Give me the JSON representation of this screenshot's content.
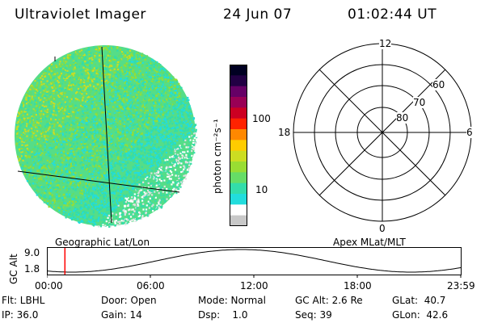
{
  "header": {
    "instrument": "Ultraviolet Imager",
    "date": "24 Jun 07",
    "time": "01:02:44 UT"
  },
  "image_panel": {
    "caption": "Geographic Lat/Lon",
    "palette": [
      "#c8c8c8",
      "#ffffff",
      "#22dddd",
      "#33ddaa",
      "#66dd66",
      "#99dd33",
      "#ccdd22",
      "#ffcc00",
      "#ff8800",
      "#ff2200",
      "#cc0022",
      "#990055",
      "#660066",
      "#220044",
      "#000022"
    ]
  },
  "colorbar": {
    "label": "photon cm⁻²s⁻¹",
    "tick_high": "100",
    "tick_low": "10"
  },
  "polar_panel": {
    "caption": "Apex MLat/MLT",
    "mlt_top": "12",
    "mlt_left": "18",
    "mlt_right": "6",
    "mlt_bottom": "0",
    "lat_60": "60",
    "lat_70": "70",
    "lat_80": "80"
  },
  "orbit_plot": {
    "ylabel": "GC Alt",
    "ytick_high": "9.0",
    "ytick_low": "1.8",
    "xticks": [
      "00:00",
      "06:00",
      "12:00",
      "18:00",
      "23:59"
    ],
    "marker_color": "#ff0000"
  },
  "status": {
    "flt": "Flt: LBHL",
    "ip": "IP: 36.0",
    "door": "Door: Open",
    "gain": "Gain: 14",
    "mode": "Mode: Normal",
    "dsp": "Dsp:    1.0",
    "gc_alt": "GC Alt: 2.6 Re",
    "seq": "Seq: 39",
    "glat": "GLat:  40.7",
    "glon": "GLon:  42.6"
  }
}
